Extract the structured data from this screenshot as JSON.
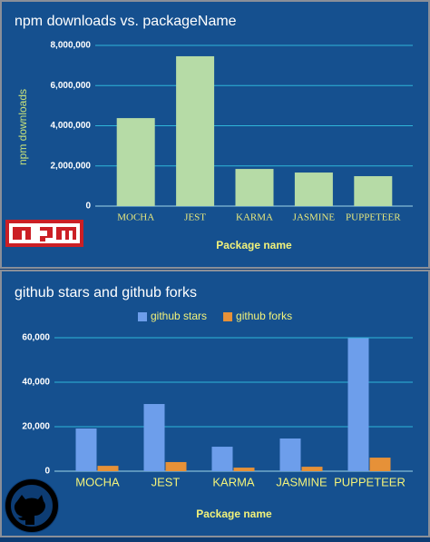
{
  "chart_data": [
    {
      "type": "bar",
      "title": "npm downloads vs. packageName",
      "y_label": "npm downloads",
      "x_label": "Package name",
      "categories": [
        "MOCHA",
        "JEST",
        "KARMA",
        "JASMINE",
        "PUPPETEER"
      ],
      "values": [
        4380000,
        7460000,
        1850000,
        1670000,
        1490000
      ],
      "color": "#b6dba6",
      "ylim": [
        0,
        8000000
      ],
      "yticks": [
        0,
        {
          "value": 2000000,
          "label": "2,000,000"
        },
        {
          "value": 4000000,
          "label": "4,000,000"
        },
        {
          "value": 6000000,
          "label": "6,000,000"
        },
        {
          "value": 8000000,
          "label": "8,000,000"
        }
      ],
      "grid": true
    },
    {
      "type": "bar",
      "title": "github stars and github forks",
      "x_label": "Package name",
      "categories": [
        "MOCHA",
        "JEST",
        "KARMA",
        "JASMINE",
        "PUPPETEER"
      ],
      "series": [
        {
          "name": "github stars",
          "color": "#6d9eeb",
          "values": [
            19200,
            30200,
            11000,
            14700,
            59800
          ]
        },
        {
          "name": "github forks",
          "color": "#e69138",
          "values": [
            2400,
            4100,
            1600,
            2000,
            6100
          ]
        }
      ],
      "ylim": [
        0,
        60000
      ],
      "yticks": [
        0,
        {
          "value": 20000,
          "label": "20,000"
        },
        {
          "value": 40000,
          "label": "40,000"
        },
        {
          "value": 60000,
          "label": "60,000"
        }
      ],
      "grid": true,
      "legend": "top"
    }
  ]
}
